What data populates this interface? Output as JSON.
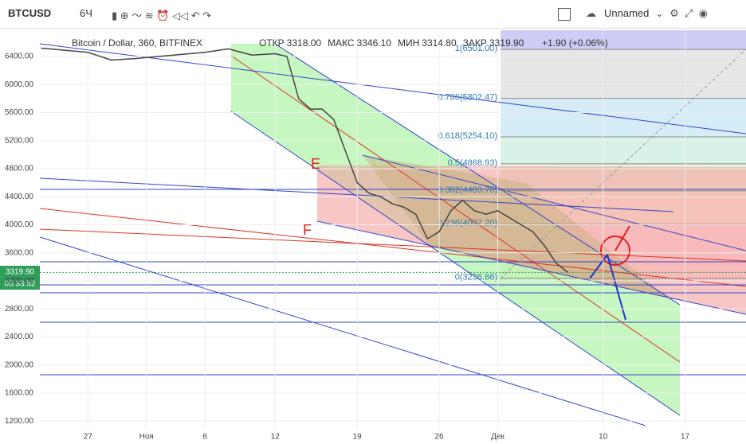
{
  "toolbar": {
    "symbol": "BTCUSD",
    "interval": "6Ч",
    "layout": "Unnamed"
  },
  "chart_data": {
    "type": "line",
    "title": "Bitcoin / Dollar, 360, BITFINEX",
    "ohlc": [
      {
        "label": "ОТКР",
        "value": 3318.0,
        "value_label": "3318.00"
      },
      {
        "label": "МАКС",
        "value": 3346.1,
        "value_label": "3346.10"
      },
      {
        "label": "МИН",
        "value": 3314.8,
        "value_label": "3314.80"
      },
      {
        "label": "ЗАКР",
        "value": 3319.9,
        "value_label": "3319.90"
      }
    ],
    "change": "+1.90 (+0.06%)",
    "last_price": {
      "value": 3319.9,
      "label": "3319.90"
    },
    "countdown": "05:33:52",
    "annotations": [
      "E",
      "F"
    ],
    "x": [
      -4,
      -2,
      0,
      2,
      4,
      6,
      8,
      10,
      12,
      14,
      16,
      17,
      18,
      19,
      20,
      21,
      22,
      23,
      24,
      25,
      26,
      27,
      28,
      29,
      30,
      31,
      32,
      33,
      34,
      35,
      36,
      37,
      38,
      39,
      40,
      41
    ],
    "series": [
      {
        "name": "BTCUSD",
        "color": "#444444",
        "values": [
          6520,
          6490,
          6460,
          6350,
          6370,
          6400,
          6430,
          6460,
          6510,
          6420,
          6440,
          6400,
          5800,
          5650,
          5650,
          5500,
          5050,
          4600,
          4450,
          4400,
          4300,
          4250,
          4150,
          3800,
          3900,
          4200,
          4350,
          4200,
          4150,
          4200,
          4100,
          4000,
          3900,
          3700,
          3450,
          3320
        ]
      }
    ],
    "fib": [
      {
        "value": 6501.0,
        "label": "1(6501.00)"
      },
      {
        "value": 5802.47,
        "label": "0.786(5802.47)"
      },
      {
        "value": 5254.1,
        "label": "0.618(5254.10)"
      },
      {
        "value": 4868.93,
        "label": "0.5(4868.93)"
      },
      {
        "value": 4483.76,
        "label": "0.382(4483.76)"
      },
      {
        "value": 4007.2,
        "label": "0.236(4007.20)"
      },
      {
        "value": 3236.86,
        "label": "0(3236.86)"
      }
    ],
    "xlim": [
      -4.1,
      56.2
    ],
    "xticks": [
      {
        "value": 0,
        "label": "27"
      },
      {
        "value": 5,
        "label": "Ноя"
      },
      {
        "value": 10,
        "label": "6"
      },
      {
        "value": 16,
        "label": "12"
      },
      {
        "value": 23,
        "label": "19"
      },
      {
        "value": 30,
        "label": "26"
      },
      {
        "value": 35,
        "label": "Дек"
      },
      {
        "value": 44,
        "label": "10"
      },
      {
        "value": 51,
        "label": "17"
      }
    ],
    "ylim": [
      1020,
      6775
    ],
    "yticks": [
      {
        "value": 1200,
        "label": "1200.00"
      },
      {
        "value": 1600,
        "label": "1600.00"
      },
      {
        "value": 2000,
        "label": "2000.00"
      },
      {
        "value": 2400,
        "label": "2400.00"
      },
      {
        "value": 2800,
        "label": "2800.00"
      },
      {
        "value": 3200,
        "label": "3200.00"
      },
      {
        "value": 3600,
        "label": "3600.00"
      },
      {
        "value": 4000,
        "label": "4000.00"
      },
      {
        "value": 4400,
        "label": "4400.00"
      },
      {
        "value": 4800,
        "label": "4800.00"
      },
      {
        "value": 5200,
        "label": "5200.00"
      },
      {
        "value": 5600,
        "label": "5600.00"
      },
      {
        "value": 6000,
        "label": "6000.00"
      },
      {
        "value": 6400,
        "label": "6400.00"
      }
    ],
    "grid": true
  }
}
